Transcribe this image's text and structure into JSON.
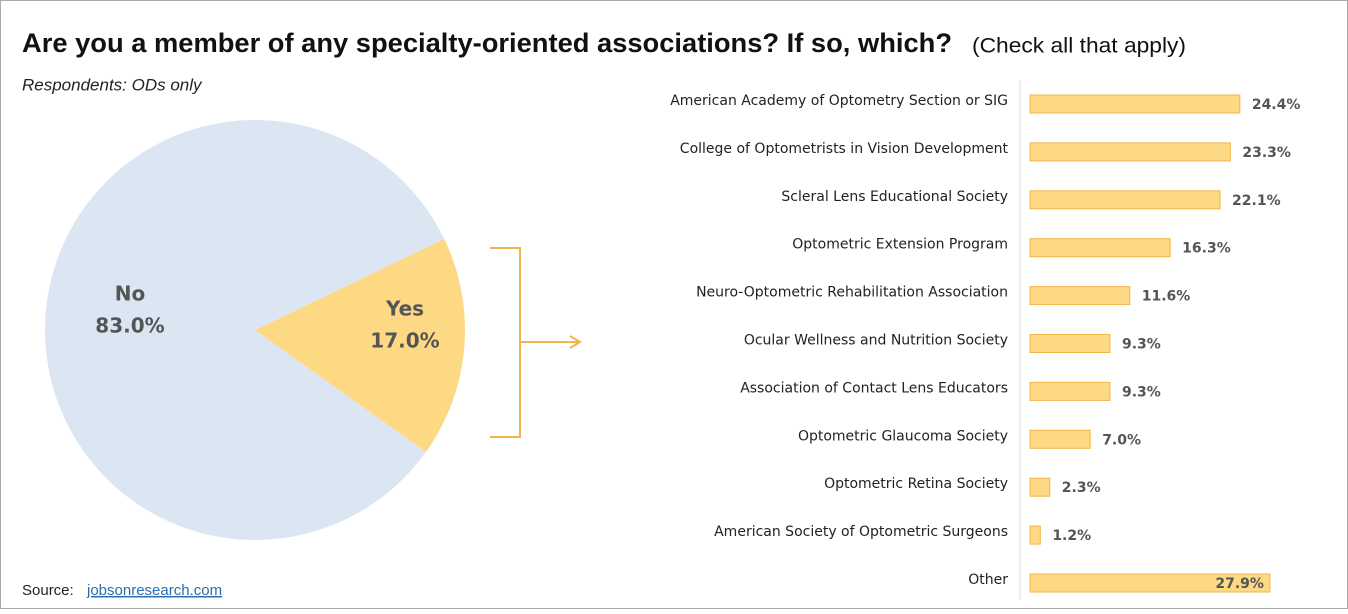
{
  "header": {
    "title": "Are you a member of any specialty-oriented associations? If so, which?",
    "note": "(Check all that apply)",
    "subtitle": "Respondents: ODs only",
    "source_label": "Source:",
    "source_link": "jobsonresearch.com"
  },
  "chart_data": [
    {
      "type": "pie",
      "categories": [
        "No",
        "Yes"
      ],
      "values": [
        83.0,
        17.0
      ],
      "value_labels": [
        "83.0%",
        "17.0%"
      ],
      "colors": [
        "#dce6f2",
        "#fdd983"
      ]
    },
    {
      "type": "hbar",
      "categories": [
        "American Academy of Optometry Section or SIG",
        "College of Optometrists in Vision Development",
        "Scleral Lens Educational Society",
        "Optometric Extension Program",
        "Neuro-Optometric Rehabilitation Association",
        "Ocular Wellness and Nutrition Society",
        "Association of Contact Lens Educators",
        "Optometric Glaucoma Society",
        "Optometric Retina Society",
        "American Society of Optometric Surgeons",
        "Other"
      ],
      "values": [
        24.4,
        23.3,
        22.1,
        16.3,
        11.6,
        9.3,
        9.3,
        7.0,
        2.3,
        1.2,
        27.9
      ],
      "value_labels": [
        "24.4%",
        "23.3%",
        "22.1%",
        "16.3%",
        "11.6%",
        "9.3%",
        "9.3%",
        "7.0%",
        "2.3%",
        "1.2%",
        "27.9%"
      ],
      "color": "#fdd983",
      "edge_color": "#f0b64a"
    }
  ]
}
